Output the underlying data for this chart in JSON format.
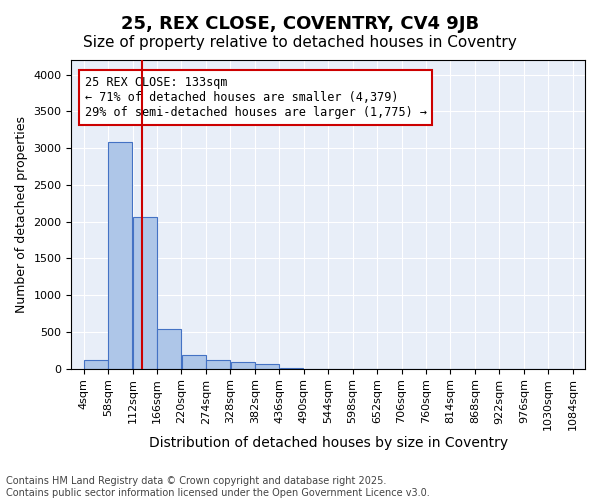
{
  "title1": "25, REX CLOSE, COVENTRY, CV4 9JB",
  "title2": "Size of property relative to detached houses in Coventry",
  "xlabel": "Distribution of detached houses by size in Coventry",
  "ylabel": "Number of detached properties",
  "property_size": 133,
  "annotation_text": "25 REX CLOSE: 133sqm\n← 71% of detached houses are smaller (4,379)\n29% of semi-detached houses are larger (1,775) →",
  "bin_edges": [
    4,
    58,
    112,
    166,
    220,
    274,
    328,
    382,
    436,
    490,
    544,
    598,
    652,
    706,
    760,
    814,
    868,
    922,
    976,
    1030,
    1084
  ],
  "bin_labels": [
    "4sqm",
    "58sqm",
    "112sqm",
    "166sqm",
    "220sqm",
    "274sqm",
    "328sqm",
    "382sqm",
    "436sqm",
    "490sqm",
    "544sqm",
    "598sqm",
    "652sqm",
    "706sqm",
    "760sqm",
    "814sqm",
    "868sqm",
    "922sqm",
    "976sqm",
    "1030sqm",
    "1084sqm"
  ],
  "bar_heights": [
    120,
    3080,
    2070,
    540,
    180,
    120,
    90,
    60,
    10,
    0,
    0,
    0,
    0,
    0,
    0,
    0,
    0,
    0,
    0,
    0
  ],
  "bar_color": "#aec6e8",
  "bar_edge_color": "#4472c4",
  "vline_color": "#cc0000",
  "vline_x": 133,
  "annotation_box_color": "#cc0000",
  "ylim": [
    0,
    4200
  ],
  "yticks": [
    0,
    500,
    1000,
    1500,
    2000,
    2500,
    3000,
    3500,
    4000
  ],
  "bg_color": "#e8eef8",
  "grid_color": "#ffffff",
  "footer": "Contains HM Land Registry data © Crown copyright and database right 2025.\nContains public sector information licensed under the Open Government Licence v3.0.",
  "title1_fontsize": 13,
  "title2_fontsize": 11,
  "xlabel_fontsize": 10,
  "ylabel_fontsize": 9,
  "tick_fontsize": 8,
  "annotation_fontsize": 8.5,
  "footer_fontsize": 7
}
